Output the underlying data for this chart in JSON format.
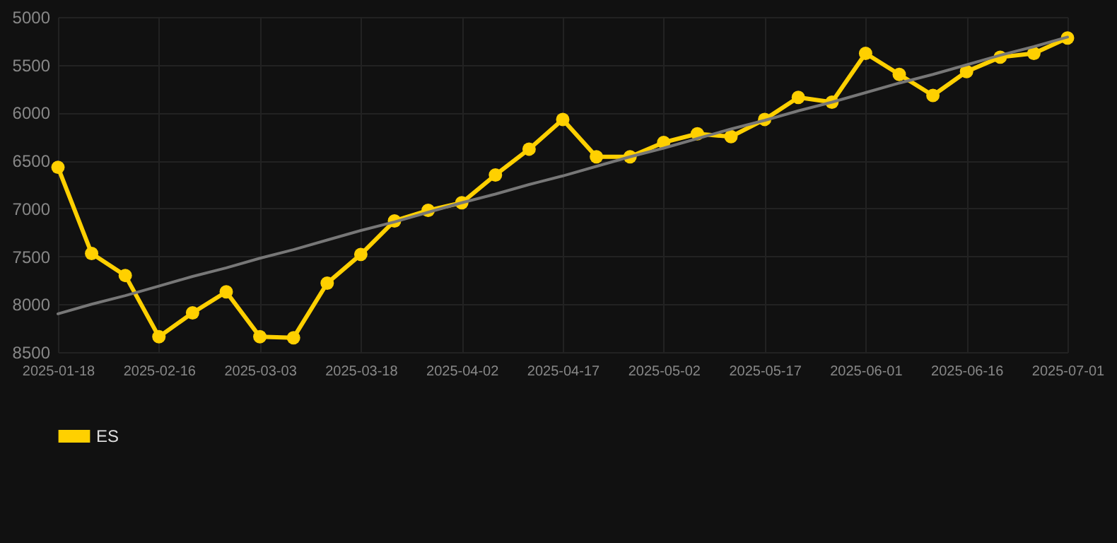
{
  "chart_data": {
    "type": "line",
    "categories": [
      "2025-01-18",
      null,
      null,
      "2025-02-16",
      null,
      null,
      "2025-03-03",
      null,
      null,
      "2025-03-18",
      null,
      null,
      "2025-04-02",
      null,
      null,
      "2025-04-17",
      null,
      null,
      "2025-05-02",
      null,
      null,
      "2025-05-17",
      null,
      null,
      "2025-06-01",
      null,
      null,
      "2025-06-16",
      null,
      null,
      "2025-07-01"
    ],
    "series": [
      {
        "name": "ES",
        "color": "#ffd000",
        "values": [
          6570,
          7470,
          7700,
          8340,
          8090,
          7870,
          8340,
          8350,
          7780,
          7480,
          7130,
          7020,
          6940,
          6650,
          6380,
          6070,
          6460,
          6460,
          6310,
          6220,
          6250,
          6070,
          5840,
          5890,
          5380,
          5600,
          5820,
          5570,
          5420,
          5380,
          5220
        ]
      },
      {
        "type": "line",
        "color": "#777777",
        "marker": "none",
        "values": [
          8100,
          8000,
          7910,
          7810,
          7710,
          7620,
          7520,
          7430,
          7330,
          7230,
          7140,
          7040,
          6940,
          6850,
          6750,
          6660,
          6560,
          6460,
          6370,
          6270,
          6170,
          6080,
          5980,
          5890,
          5790,
          5690,
          5600,
          5500,
          5400,
          5310,
          5210
        ]
      }
    ],
    "ylim": [
      8500,
      5000
    ],
    "yticks": [
      5000,
      5500,
      6000,
      6500,
      7000,
      7500,
      8000,
      8500
    ],
    "grid": true,
    "legend": "bottom",
    "marker": "circle",
    "line_style": "solid"
  }
}
